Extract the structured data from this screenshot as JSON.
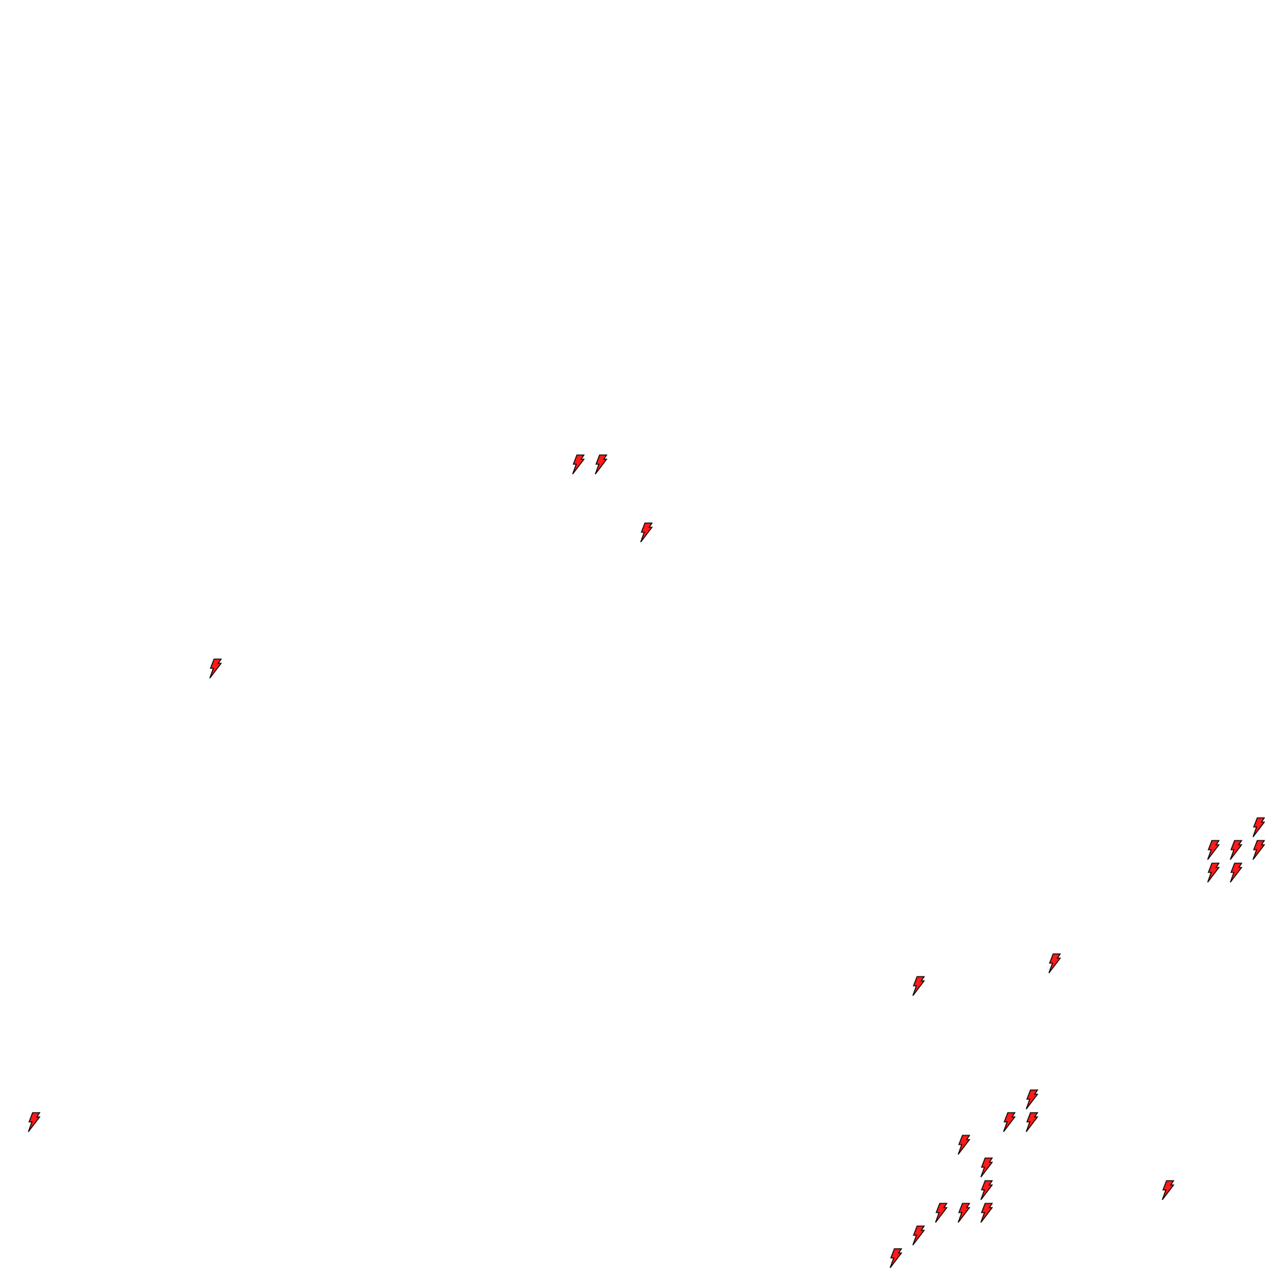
{
  "map": {
    "marker_icon": "lightning-bolt-icon",
    "marker_fill": "#ff1a1a",
    "marker_stroke": "#000000",
    "background": "#ffffff"
  }
}
